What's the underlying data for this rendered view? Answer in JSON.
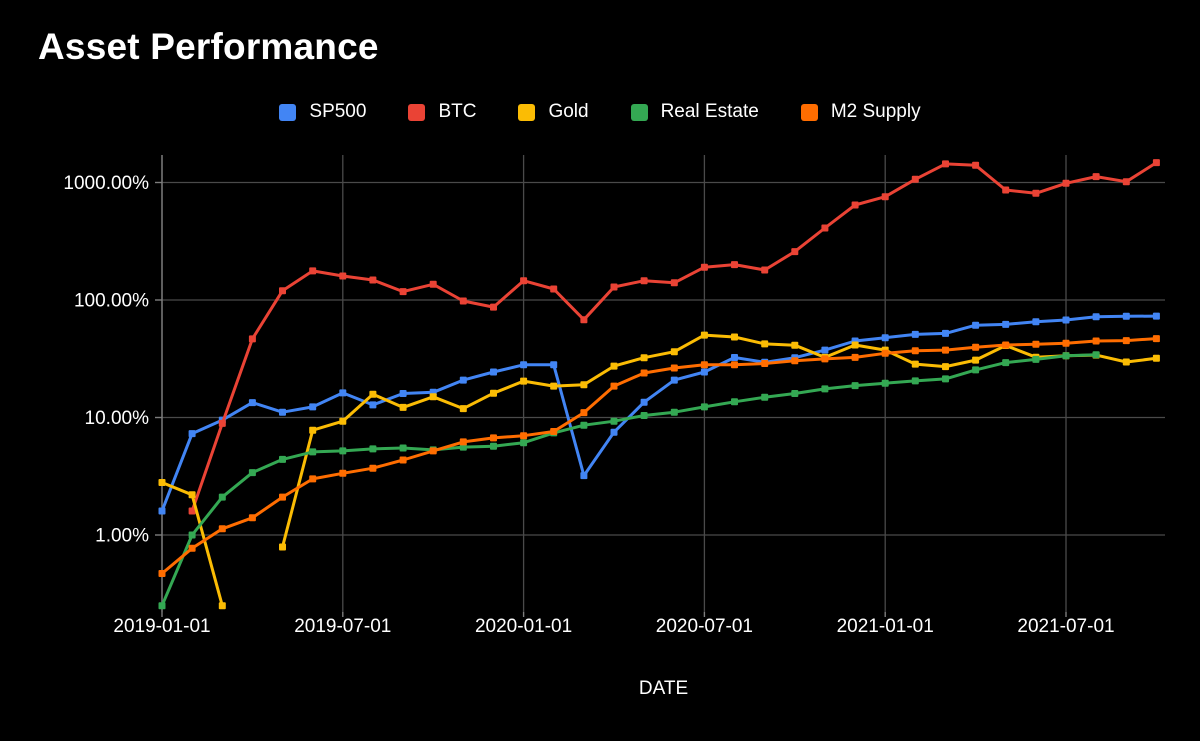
{
  "title": "Asset Performance",
  "x_axis_title": "DATE",
  "background_color": "#000000",
  "text_color": "#ffffff",
  "grid_color": "#4a4a4a",
  "axis_color": "#7d7d7d",
  "chart_data": {
    "type": "line",
    "title": "Asset Performance",
    "xlabel": "DATE",
    "ylabel": "",
    "y_scale": "log",
    "grid": true,
    "legend_position": "top-center",
    "marker_shape": "square",
    "y_ticks": [
      {
        "value": 1,
        "label": "1.00%"
      },
      {
        "value": 10,
        "label": "10.00%"
      },
      {
        "value": 100,
        "label": "100.00%"
      },
      {
        "value": 1000,
        "label": "1000.00%"
      }
    ],
    "x_tick_labels": [
      "2019-01-01",
      "2019-07-01",
      "2020-01-01",
      "2020-07-01",
      "2021-01-01",
      "2021-07-01"
    ],
    "x_tick_month_indices": [
      0,
      6,
      12,
      18,
      24,
      30
    ],
    "x": [
      "2019-01",
      "2019-02",
      "2019-03",
      "2019-04",
      "2019-05",
      "2019-06",
      "2019-07",
      "2019-08",
      "2019-09",
      "2019-10",
      "2019-11",
      "2019-12",
      "2020-01",
      "2020-02",
      "2020-03",
      "2020-04",
      "2020-05",
      "2020-06",
      "2020-07",
      "2020-08",
      "2020-09",
      "2020-10",
      "2020-11",
      "2020-12",
      "2021-01",
      "2021-02",
      "2021-03",
      "2021-04",
      "2021-05",
      "2021-06",
      "2021-07",
      "2021-08",
      "2021-09",
      "2021-10"
    ],
    "unit": "percent",
    "series": [
      {
        "name": "SP500",
        "color": "#4285F4",
        "values": [
          1.6,
          7.3,
          9.5,
          13.4,
          11.1,
          12.3,
          16.2,
          12.8,
          16.0,
          16.4,
          20.8,
          24.4,
          28.1,
          28.1,
          3.2,
          7.5,
          13.5,
          20.8,
          24.4,
          32.4,
          29.5,
          32.3,
          37.5,
          44.8,
          47.8,
          51.0,
          52.0,
          61.0,
          62.0,
          65.3,
          67.6,
          72.0,
          72.6,
          73.0
        ]
      },
      {
        "name": "BTC",
        "color": "#EA4335",
        "values": [
          null,
          1.6,
          8.9,
          46.7,
          120,
          177,
          160,
          148,
          118,
          136,
          98,
          87,
          146,
          124,
          68,
          129,
          146,
          140,
          190,
          200,
          180,
          258,
          410,
          643,
          757,
          1064,
          1440,
          1400,
          863,
          809,
          985,
          1122,
          1016,
          1476
        ]
      },
      {
        "name": "Gold",
        "color": "#FBBC04",
        "values": [
          2.8,
          2.2,
          0.25,
          null,
          0.79,
          7.8,
          9.3,
          15.8,
          12.2,
          15.0,
          11.9,
          16.1,
          20.4,
          18.5,
          19.0,
          27.4,
          32.3,
          36.3,
          50.3,
          48.4,
          42.3,
          41.2,
          32.5,
          41.4,
          37.5,
          28.5,
          27.1,
          30.8,
          41.0,
          32.6,
          33.5,
          34.0,
          29.7,
          31.9
        ]
      },
      {
        "name": "Real Estate",
        "color": "#34A853",
        "values": [
          0.25,
          1.0,
          2.1,
          3.4,
          4.4,
          5.1,
          5.2,
          5.4,
          5.5,
          5.3,
          5.6,
          5.7,
          6.1,
          7.4,
          8.6,
          9.3,
          10.4,
          11.1,
          12.3,
          13.6,
          14.9,
          16.0,
          17.5,
          18.7,
          19.6,
          20.5,
          21.3,
          25.4,
          29.3,
          31.2,
          33.6,
          34.2,
          null,
          null
        ]
      },
      {
        "name": "M2 Supply",
        "color": "#FF6D00",
        "values": [
          0.47,
          0.77,
          1.13,
          1.4,
          2.1,
          3.0,
          3.35,
          3.7,
          4.35,
          5.2,
          6.2,
          6.7,
          7.0,
          7.6,
          11.0,
          18.5,
          23.9,
          26.4,
          28.1,
          28.1,
          28.8,
          30.4,
          31.5,
          32.5,
          35.2,
          37.0,
          37.5,
          39.6,
          41.4,
          42.0,
          42.8,
          44.8,
          45.1,
          46.9
        ]
      }
    ]
  }
}
